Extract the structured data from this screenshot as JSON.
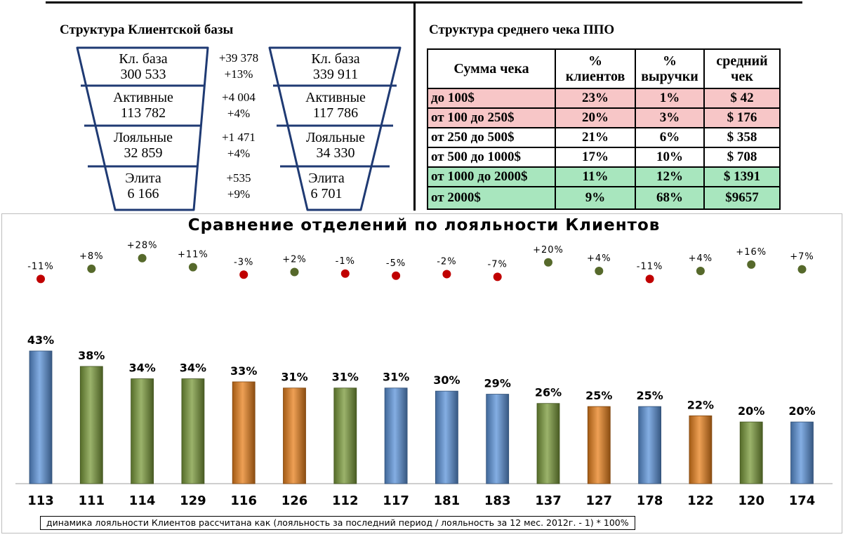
{
  "client_base": {
    "title": "Структура Клиентской базы",
    "before": [
      {
        "label": "Кл. база",
        "value": "300 533"
      },
      {
        "label": "Активные",
        "value": "113 782"
      },
      {
        "label": "Лояльные",
        "value": "32 859"
      },
      {
        "label": "Элита",
        "value": "6 166"
      }
    ],
    "deltas": [
      {
        "abs": "+39 378",
        "pct": "+13%"
      },
      {
        "abs": "+4 004",
        "pct": "+4%"
      },
      {
        "abs": "+1 471",
        "pct": "+4%"
      },
      {
        "abs": "+535",
        "pct": "+9%"
      }
    ],
    "after": [
      {
        "label": "Кл. база",
        "value": "339 911"
      },
      {
        "label": "Активные",
        "value": "117 786"
      },
      {
        "label": "Лояльные",
        "value": "34 330"
      },
      {
        "label": "Элита",
        "value": "6 701"
      }
    ],
    "funnel_color": "#1f3a73"
  },
  "avg_check": {
    "title": "Структура среднего чека ППО",
    "headers": [
      "Сумма чека",
      "% клиентов",
      "% выручки",
      "средний чек"
    ],
    "rows": [
      {
        "range": "до 100$",
        "clients": "23%",
        "revenue": "1%",
        "avg": "$ 42",
        "color": "red"
      },
      {
        "range": "от 100 до 250$",
        "clients": "20%",
        "revenue": "3%",
        "avg": "$ 176",
        "color": "red"
      },
      {
        "range": "от 250 до 500$",
        "clients": "21%",
        "revenue": "6%",
        "avg": "$ 358",
        "color": "white"
      },
      {
        "range": "от 500 до 1000$",
        "clients": "17%",
        "revenue": "10%",
        "avg": "$ 708",
        "color": "white"
      },
      {
        "range": "от 1000 до 2000$",
        "clients": "11%",
        "revenue": "12%",
        "avg": "$ 1391",
        "color": "green"
      },
      {
        "range": "от 2000$",
        "clients": "9%",
        "revenue": "68%",
        "avg": "$9657",
        "color": "green"
      }
    ]
  },
  "chart_data": {
    "type": "bar",
    "title": "Сравнение отделений по лояльности Клиентов",
    "categories": [
      "113",
      "111",
      "114",
      "129",
      "116",
      "126",
      "112",
      "117",
      "181",
      "183",
      "137",
      "127",
      "178",
      "122",
      "120",
      "174"
    ],
    "values": [
      43,
      38,
      34,
      34,
      33,
      31,
      31,
      31,
      30,
      29,
      26,
      25,
      25,
      22,
      20,
      20
    ],
    "value_labels": [
      "43%",
      "38%",
      "34%",
      "34%",
      "33%",
      "31%",
      "31%",
      "31%",
      "30%",
      "29%",
      "26%",
      "25%",
      "25%",
      "22%",
      "20%",
      "20%"
    ],
    "bar_colors": [
      "blue",
      "green",
      "green",
      "green",
      "orange",
      "orange",
      "green",
      "blue",
      "blue",
      "blue",
      "green",
      "orange",
      "blue",
      "orange",
      "green",
      "blue"
    ],
    "dynamics": [
      -11,
      8,
      28,
      11,
      -3,
      2,
      -1,
      -5,
      -2,
      -7,
      20,
      4,
      -11,
      4,
      16,
      7
    ],
    "dynamics_labels": [
      "-11%",
      "+8%",
      "+28%",
      "+11%",
      "-3%",
      "+2%",
      "-1%",
      "-5%",
      "-2%",
      "-7%",
      "+20%",
      "+4%",
      "-11%",
      "+4%",
      "+16%",
      "+7%"
    ],
    "ylim": [
      0,
      45
    ],
    "grid": false,
    "colors": {
      "blue": "#5b93d9",
      "green": "#7a9a3a",
      "orange": "#e8801c",
      "dot_positive": "#56692b",
      "dot_negative": "#c00000"
    }
  },
  "footnote": "динамика лояльности Клиентов рассчитана как (лояльность за последний период / лояльность за 12 мес. 2012г. - 1) * 100%"
}
